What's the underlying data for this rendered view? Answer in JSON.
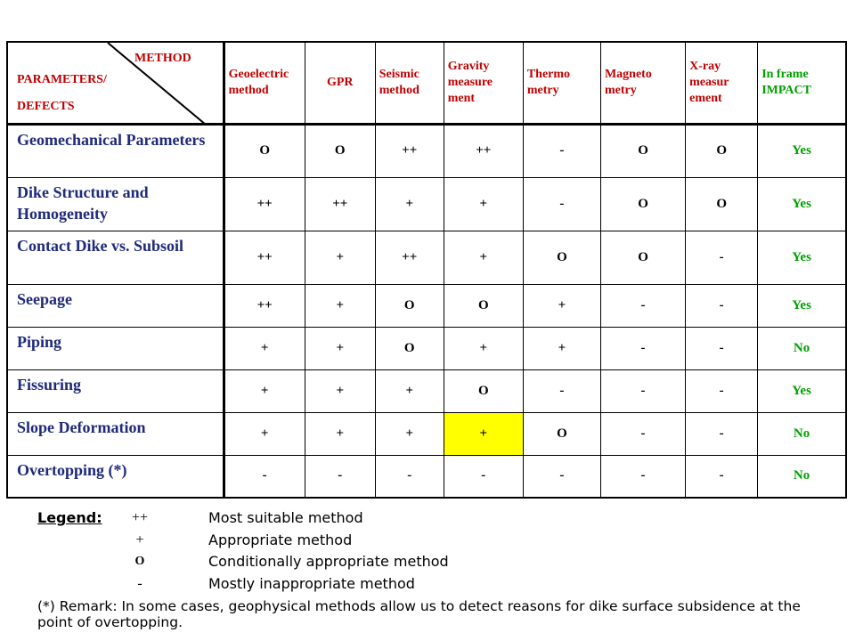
{
  "header": {
    "corner_method": "METHOD",
    "corner_params": "PARAMETERS/",
    "corner_defects": "DEFECTS",
    "columns": [
      "Geoelectric method",
      "GPR",
      "Seismic method",
      "Gravity measure ment",
      "Thermo metry",
      "Magneto metry",
      "X-ray measur ement",
      "In frame IMPACT"
    ]
  },
  "rows": [
    {
      "label": "Geomechanical Parameters",
      "values": [
        "O",
        "O",
        "++",
        "++",
        "-",
        "O",
        "O",
        "Yes"
      ]
    },
    {
      "label": "Dike Structure and Homogeneity",
      "values": [
        "++",
        "++",
        "+",
        "+",
        "-",
        "O",
        "O",
        "Yes"
      ]
    },
    {
      "label": "Contact Dike vs. Subsoil",
      "values": [
        "++",
        "+",
        "++",
        "+",
        "O",
        "O",
        "-",
        "Yes"
      ]
    },
    {
      "label": "Seepage",
      "values": [
        "++",
        "+",
        "O",
        "O",
        "+",
        "-",
        "-",
        "Yes"
      ]
    },
    {
      "label": "Piping",
      "values": [
        "+",
        "+",
        "O",
        "+",
        "+",
        "-",
        "-",
        "No"
      ]
    },
    {
      "label": "Fissuring",
      "values": [
        "+",
        "+",
        "+",
        "O",
        "-",
        "-",
        "-",
        "Yes"
      ]
    },
    {
      "label": "Slope Deformation",
      "values": [
        "+",
        "+",
        "+",
        "+",
        "O",
        "-",
        "-",
        "No"
      ]
    },
    {
      "label": "Overtopping (*)",
      "values": [
        "-",
        "-",
        "-",
        "-",
        "-",
        "-",
        "-",
        "No"
      ]
    }
  ],
  "highlight": {
    "row": 6,
    "col": 3,
    "color": "#ffff00"
  },
  "legend": {
    "title": "Legend:",
    "items": [
      {
        "symbol": "++",
        "text": "Most suitable method"
      },
      {
        "symbol": "+",
        "text": "Appropriate method"
      },
      {
        "symbol": "O",
        "text": "Conditionally appropriate method"
      },
      {
        "symbol": "-",
        "text": "Mostly inappropriate method"
      }
    ]
  },
  "remark": "(*) Remark: In some cases, geophysical methods allow us to detect reasons for dike surface subsidence at the point of overtopping.",
  "colors": {
    "header_text": "#c00000",
    "row_label": "#1f2a7a",
    "impact": "#00a000",
    "highlight": "#ffff00"
  }
}
